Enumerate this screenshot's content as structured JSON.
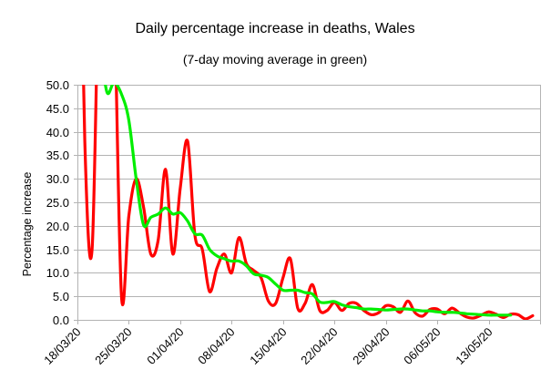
{
  "chart_data": {
    "type": "line",
    "title": "Daily percentage increase in deaths, Wales",
    "subtitle": "(7-day moving average in green)",
    "xlabel": "",
    "ylabel": "Percentage increase",
    "ylim": [
      0,
      50
    ],
    "yticks": [
      "0.0",
      "5.0",
      "10.0",
      "15.0",
      "20.0",
      "25.0",
      "30.0",
      "35.0",
      "40.0",
      "45.0",
      "50.0"
    ],
    "ytick_values": [
      0,
      5,
      10,
      15,
      20,
      25,
      30,
      35,
      40,
      45,
      50
    ],
    "xlim_days": [
      0,
      63
    ],
    "xtick_days": [
      0,
      7,
      14,
      21,
      28,
      35,
      42,
      49,
      56
    ],
    "xticks": [
      "18/03/20",
      "25/03/20",
      "01/04/20",
      "08/04/20",
      "15/04/20",
      "22/04/20",
      "29/04/20",
      "06/05/20",
      "13/05/20"
    ],
    "grid": true,
    "legend": "none",
    "x_description": "days since 18/03/20",
    "series": [
      {
        "name": "Daily percentage increase",
        "color": "#ff0000",
        "start_day": 0,
        "values": [
          120,
          38,
          15,
          80,
          110,
          70,
          5,
          22,
          30,
          24,
          14,
          17,
          32,
          14,
          28,
          38,
          18,
          15,
          6,
          11,
          14,
          10,
          17.5,
          12,
          10.5,
          9,
          4,
          3.5,
          9,
          13,
          2.5,
          3.5,
          7.5,
          2,
          2,
          3.7,
          2,
          3.5,
          3.5,
          2,
          1.1,
          1.5,
          3,
          2.8,
          1.6,
          4,
          1.5,
          0.8,
          2.2,
          2.3,
          1.3,
          2.5,
          1.5,
          0.6,
          0.4,
          1.0,
          1.7,
          1.2,
          0.5,
          1.2,
          1.1,
          0.2,
          0.9
        ]
      },
      {
        "name": "7-day moving average",
        "color": "#00ee00",
        "start_day": 3,
        "values": [
          60,
          48.5,
          50.5,
          48,
          42.5,
          30,
          20.2,
          21.8,
          22.5,
          23.8,
          22.5,
          22.8,
          21,
          18.3,
          18,
          15,
          13.6,
          13,
          12.5,
          12.5,
          11.5,
          9.8,
          9.5,
          9,
          7.6,
          6.3,
          6.3,
          6.3,
          5.8,
          5.5,
          3.8,
          3.7,
          3.9,
          3.2,
          2.8,
          2.6,
          2.3,
          2.3,
          2.2,
          2.1,
          2.2,
          2.3,
          2.3,
          2.1,
          1.9,
          1.9,
          1.7,
          1.6,
          1.6,
          1.5,
          1.3,
          1.2,
          1.1,
          1.0,
          1.0,
          1.0,
          1.0
        ]
      }
    ]
  }
}
